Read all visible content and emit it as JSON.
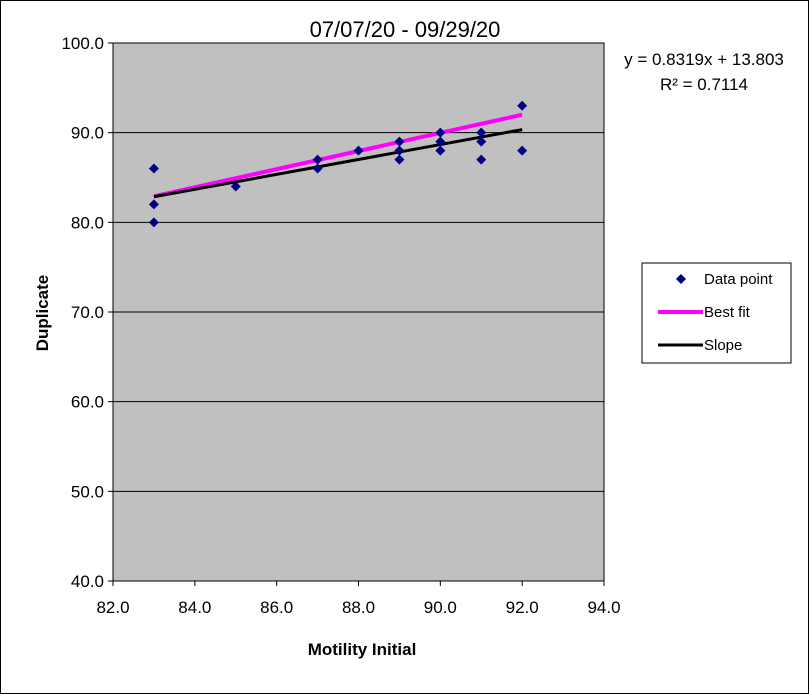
{
  "chart_data": {
    "type": "scatter",
    "title": "07/07/20 - 09/29/20",
    "xlabel": "Motility Initial",
    "ylabel": "Duplicate",
    "xlim": [
      82.0,
      94.0
    ],
    "ylim": [
      40.0,
      100.0
    ],
    "x_ticks": [
      "82.0",
      "84.0",
      "86.0",
      "88.0",
      "90.0",
      "92.0",
      "94.0"
    ],
    "y_ticks": [
      "40.0",
      "50.0",
      "60.0",
      "70.0",
      "80.0",
      "90.0",
      "100.0"
    ],
    "grid": "horizontal",
    "plot_background": "#c0c0c0",
    "legend_position": "right",
    "series": [
      {
        "name": "Data point",
        "kind": "points",
        "color": "#000080",
        "x": [
          83,
          83,
          83,
          85,
          87,
          87,
          88,
          89,
          89,
          89,
          90,
          90,
          90,
          91,
          91,
          91,
          92,
          92
        ],
        "y": [
          86,
          82,
          80,
          84,
          87,
          86,
          88,
          89,
          88,
          87,
          90,
          89,
          88,
          90,
          89,
          87,
          93,
          88
        ]
      },
      {
        "name": "Best fit",
        "kind": "line",
        "color": "#ff00ff",
        "x": [
          83,
          92
        ],
        "y": [
          82.9,
          92.0
        ]
      },
      {
        "name": "Slope",
        "kind": "line",
        "color": "#000000",
        "x": [
          83,
          92
        ],
        "y": [
          82.85,
          90.34
        ]
      }
    ],
    "annotations": {
      "equation": "y = 0.8319x + 13.803",
      "r_squared": "R² = 0.7114"
    }
  }
}
